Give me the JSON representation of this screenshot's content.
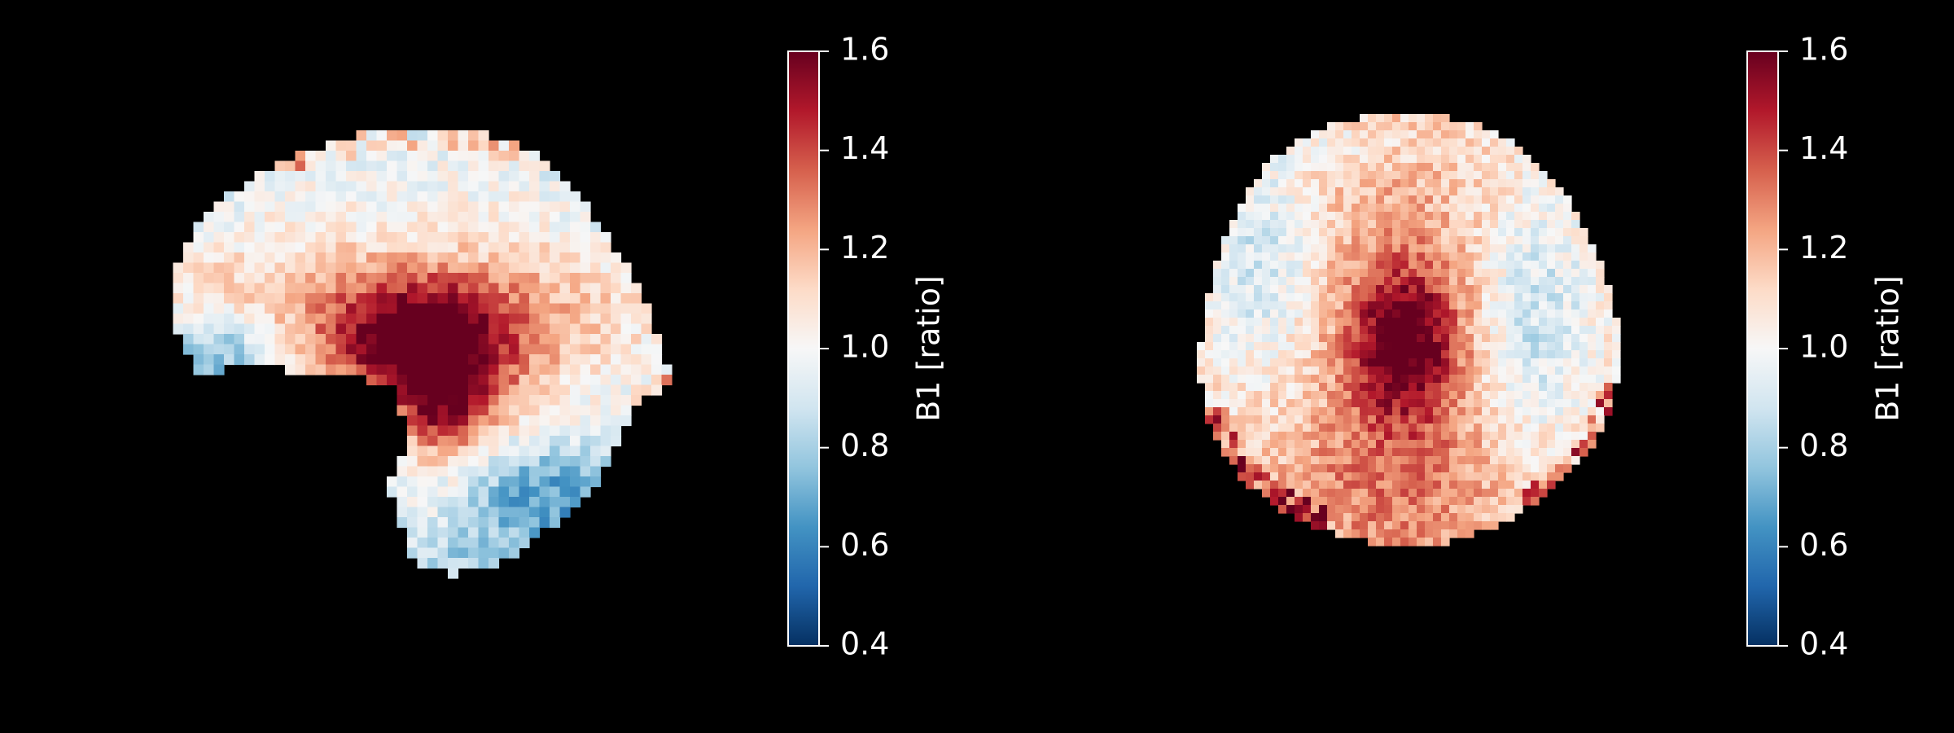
{
  "chart_data": [
    {
      "type": "heatmap",
      "view": "sagittal",
      "grid": false,
      "colormap": "RdBu_r",
      "colormap_stops": [
        "#053061",
        "#2166ac",
        "#4393c3",
        "#92c5de",
        "#d1e5f0",
        "#f7f7f7",
        "#fddbc7",
        "#f4a582",
        "#d6604d",
        "#b2182b",
        "#67001f"
      ],
      "background_color": "#000000",
      "colorbar": {
        "label": "B1 [ratio]",
        "vmin": 0.4,
        "vmax": 1.6,
        "ticks": [
          0.4,
          0.6,
          0.8,
          1.0,
          1.2,
          1.4,
          1.6
        ],
        "tick_labels": [
          "0.4",
          "0.6",
          "0.8",
          "1.0",
          "1.2",
          "1.4",
          "1.6"
        ]
      },
      "value_range": [
        0.4,
        1.6
      ],
      "high_region_value": 1.6
    },
    {
      "type": "heatmap",
      "view": "axial",
      "grid": false,
      "colormap": "RdBu_r",
      "colormap_stops": [
        "#053061",
        "#2166ac",
        "#4393c3",
        "#92c5de",
        "#d1e5f0",
        "#f7f7f7",
        "#fddbc7",
        "#f4a582",
        "#d6604d",
        "#b2182b",
        "#67001f"
      ],
      "background_color": "#000000",
      "colorbar": {
        "label": "B1 [ratio]",
        "vmin": 0.4,
        "vmax": 1.6,
        "ticks": [
          0.4,
          0.6,
          0.8,
          1.0,
          1.2,
          1.4,
          1.6
        ],
        "tick_labels": [
          "0.4",
          "0.6",
          "0.8",
          "1.0",
          "1.2",
          "1.4",
          "1.6"
        ]
      },
      "value_range": [
        0.4,
        1.6
      ],
      "high_region_value": 1.55
    }
  ]
}
